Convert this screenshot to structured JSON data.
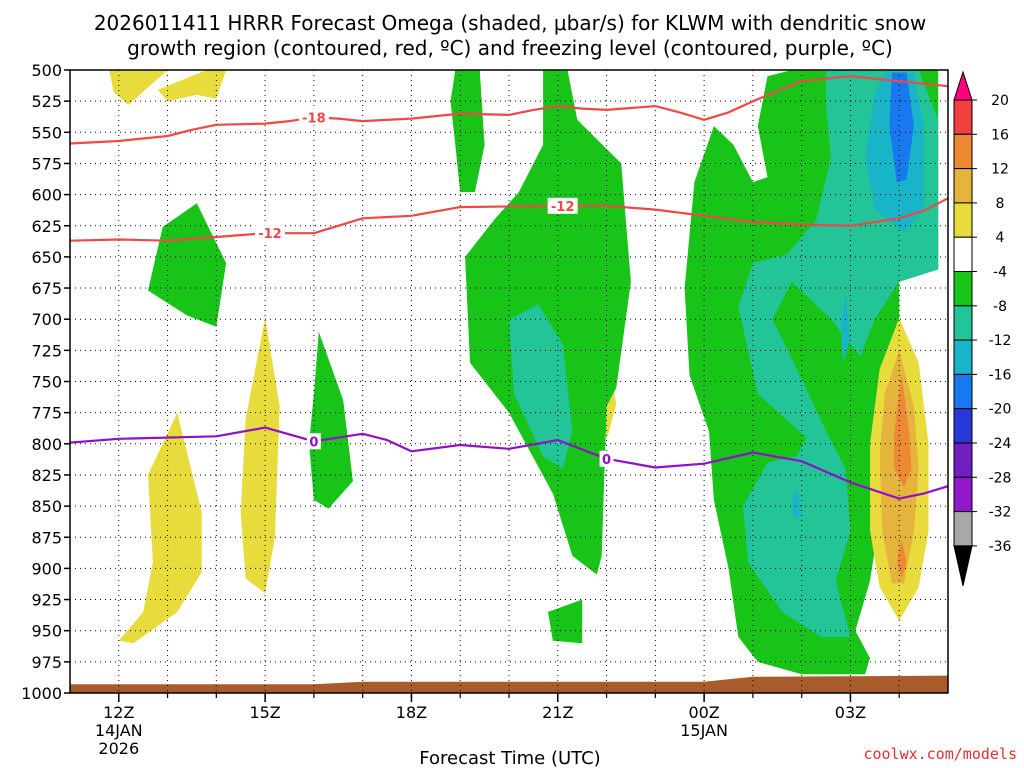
{
  "chart_data": {
    "type": "contour",
    "title_line1": "2026011411 HRRR Forecast Omega (shaded, μbar/s) for KLWM with dendritic snow",
    "title_line2": "growth region (contoured, red, ºC) and freezing level (contoured, purple, ºC)",
    "xlabel": "Forecast Time (UTC)",
    "credit": "coolwx.com/models",
    "x_range_hours": [
      11,
      29
    ],
    "y_range_mb": [
      500,
      1000
    ],
    "y_ticks": [
      500,
      525,
      550,
      575,
      600,
      625,
      650,
      675,
      700,
      725,
      750,
      775,
      800,
      825,
      850,
      875,
      900,
      925,
      950,
      975,
      1000
    ],
    "x_ticks": [
      {
        "hour": 12,
        "label": "12Z",
        "sub1": "14JAN",
        "sub2": "2026"
      },
      {
        "hour": 15,
        "label": "15Z",
        "sub1": "",
        "sub2": ""
      },
      {
        "hour": 18,
        "label": "18Z",
        "sub1": "",
        "sub2": ""
      },
      {
        "hour": 21,
        "label": "21Z",
        "sub1": "",
        "sub2": ""
      },
      {
        "hour": 24,
        "label": "00Z",
        "sub1": "15JAN",
        "sub2": ""
      },
      {
        "hour": 27,
        "label": "03Z",
        "sub1": "",
        "sub2": ""
      }
    ],
    "colorbar": {
      "labels": [
        "20",
        "16",
        "12",
        "8",
        "4",
        "-4",
        "-8",
        "-12",
        "-16",
        "-20",
        "-24",
        "-28",
        "-32",
        "-36"
      ],
      "colors": [
        "#ff0080",
        "#f04040",
        "#ee8833",
        "#e4b43c",
        "#e8dc3c",
        "#ffffff",
        "#17c417",
        "#22c498",
        "#18b4c8",
        "#1878f0",
        "#2838d8",
        "#7020c0",
        "#9018c8",
        "#a8a8a8",
        "#000000"
      ]
    },
    "isotherm_neg18": {
      "label": "-18",
      "color": "#f04848",
      "points": [
        [
          11,
          559
        ],
        [
          12,
          557
        ],
        [
          13,
          553
        ],
        [
          13.5,
          548
        ],
        [
          14,
          544
        ],
        [
          15,
          543
        ],
        [
          15.5,
          541
        ],
        [
          16,
          538
        ],
        [
          16.5,
          539
        ],
        [
          17,
          541
        ],
        [
          18,
          539
        ],
        [
          19,
          535
        ],
        [
          20,
          536
        ],
        [
          20.5,
          532
        ],
        [
          21,
          529
        ],
        [
          21.5,
          531
        ],
        [
          22,
          532
        ],
        [
          23,
          529
        ],
        [
          23.5,
          534
        ],
        [
          24,
          540
        ],
        [
          24.5,
          534
        ],
        [
          25,
          525
        ],
        [
          26,
          509
        ],
        [
          27,
          505
        ],
        [
          28,
          509
        ],
        [
          29,
          513
        ]
      ]
    },
    "isotherm_neg12": {
      "label": "-12",
      "color": "#f04848",
      "points": [
        [
          11,
          637
        ],
        [
          12,
          636
        ],
        [
          13,
          637
        ],
        [
          14,
          634
        ],
        [
          15,
          631
        ],
        [
          16,
          631
        ],
        [
          16.5,
          625
        ],
        [
          17,
          619
        ],
        [
          18,
          617
        ],
        [
          19,
          610
        ],
        [
          21,
          609
        ],
        [
          22,
          609
        ],
        [
          23,
          612
        ],
        [
          24,
          617
        ],
        [
          25,
          622
        ],
        [
          26,
          624
        ],
        [
          27,
          625
        ],
        [
          28,
          619
        ],
        [
          28.5,
          613
        ],
        [
          29,
          603
        ]
      ]
    },
    "isotherm_0": {
      "label": "0",
      "color": "#9010c8",
      "points": [
        [
          11,
          799
        ],
        [
          12,
          796
        ],
        [
          14,
          794
        ],
        [
          15,
          787
        ],
        [
          16,
          798
        ],
        [
          17,
          792
        ],
        [
          17.5,
          797
        ],
        [
          18,
          806
        ],
        [
          19,
          801
        ],
        [
          20,
          804
        ],
        [
          21,
          797
        ],
        [
          22,
          812
        ],
        [
          23,
          819
        ],
        [
          24,
          816
        ],
        [
          25,
          807
        ],
        [
          26,
          814
        ],
        [
          27,
          831
        ],
        [
          28,
          844
        ],
        [
          28.5,
          840
        ],
        [
          29,
          834
        ]
      ]
    },
    "omega_regions": [
      {
        "value": 4,
        "color": "#e8dc3c",
        "points": [
          [
            11.8,
            500
          ],
          [
            13.0,
            500
          ],
          [
            12.2,
            528
          ],
          [
            11.9,
            518
          ]
        ]
      },
      {
        "value": 4,
        "color": "#e8dc3c",
        "points": [
          [
            13.8,
            500
          ],
          [
            14.2,
            500
          ],
          [
            14.0,
            523
          ],
          [
            13.6,
            520
          ],
          [
            13.0,
            525
          ],
          [
            12.8,
            516
          ]
        ]
      },
      {
        "value": -8,
        "color": "#17c417",
        "points": [
          [
            13.6,
            607
          ],
          [
            14.2,
            655
          ],
          [
            14.0,
            706
          ],
          [
            13.4,
            697
          ],
          [
            12.6,
            677
          ],
          [
            12.9,
            626
          ]
        ]
      },
      {
        "value": 4,
        "color": "#e8dc3c",
        "points": [
          [
            13.2,
            775
          ],
          [
            13.7,
            855
          ],
          [
            13.7,
            903
          ],
          [
            13.2,
            935
          ],
          [
            12.3,
            960
          ],
          [
            12.0,
            958
          ],
          [
            12.5,
            935
          ],
          [
            12.7,
            895
          ],
          [
            12.6,
            825
          ]
        ]
      },
      {
        "value": 4,
        "color": "#e8dc3c",
        "points": [
          [
            15.0,
            699
          ],
          [
            15.3,
            770
          ],
          [
            15.2,
            875
          ],
          [
            15.0,
            920
          ],
          [
            14.6,
            908
          ],
          [
            14.5,
            855
          ],
          [
            14.6,
            780
          ]
        ]
      },
      {
        "value": -8,
        "color": "#17c417",
        "points": [
          [
            16.1,
            710
          ],
          [
            16.6,
            765
          ],
          [
            16.8,
            830
          ],
          [
            16.3,
            852
          ],
          [
            16.0,
            845
          ],
          [
            15.9,
            800
          ],
          [
            16.0,
            760
          ]
        ]
      },
      {
        "value": 4,
        "color": "#e8dc3c",
        "points": [
          [
            22.0,
            727
          ],
          [
            22.2,
            768
          ],
          [
            22.0,
            797
          ],
          [
            21.9,
            760
          ]
        ]
      },
      {
        "value": -8,
        "color": "#17c417",
        "points": [
          [
            19.4,
            500
          ],
          [
            19.5,
            560
          ],
          [
            19.3,
            598
          ],
          [
            19.0,
            598
          ],
          [
            18.9,
            560
          ],
          [
            18.8,
            525
          ],
          [
            18.9,
            500
          ]
        ]
      },
      {
        "value": -8,
        "color": "#17c417",
        "points": [
          [
            21.2,
            500
          ],
          [
            21.4,
            540
          ],
          [
            22.3,
            575
          ],
          [
            22.5,
            670
          ],
          [
            22.2,
            755
          ],
          [
            22.0,
            770
          ],
          [
            21.9,
            890
          ],
          [
            21.8,
            905
          ],
          [
            21.3,
            890
          ],
          [
            20.9,
            840
          ],
          [
            20.0,
            775
          ],
          [
            19.2,
            735
          ],
          [
            19.1,
            650
          ],
          [
            19.7,
            620
          ],
          [
            20.2,
            598
          ],
          [
            20.7,
            560
          ],
          [
            20.7,
            500
          ]
        ]
      },
      {
        "value": -8,
        "color": "#17c417",
        "points": [
          [
            21.5,
            925
          ],
          [
            21.5,
            960
          ],
          [
            20.9,
            958
          ],
          [
            20.8,
            935
          ]
        ]
      },
      {
        "value": -12,
        "color": "#22c498",
        "points": [
          [
            20.6,
            688
          ],
          [
            21.1,
            720
          ],
          [
            21.3,
            790
          ],
          [
            21.1,
            820
          ],
          [
            20.7,
            810
          ],
          [
            20.1,
            760
          ],
          [
            20.0,
            700
          ]
        ]
      },
      {
        "value": -8,
        "color": "#17c417",
        "points": [
          [
            25.8,
            500
          ],
          [
            26.5,
            500
          ],
          [
            27.5,
            500
          ],
          [
            28.8,
            500
          ],
          [
            28.8,
            660
          ],
          [
            28.0,
            670
          ],
          [
            28.0,
            740
          ],
          [
            27.5,
            800
          ],
          [
            27.6,
            860
          ],
          [
            27.4,
            910
          ],
          [
            27.1,
            950
          ],
          [
            27.4,
            972
          ],
          [
            27.3,
            985
          ],
          [
            26.0,
            985
          ],
          [
            25.1,
            975
          ],
          [
            24.7,
            955
          ],
          [
            24.5,
            900
          ],
          [
            24.2,
            845
          ],
          [
            24.1,
            790
          ],
          [
            23.7,
            745
          ],
          [
            23.6,
            675
          ],
          [
            23.8,
            590
          ],
          [
            24.2,
            545
          ],
          [
            24.6,
            560
          ],
          [
            25.0,
            590
          ],
          [
            25.3,
            586
          ],
          [
            25.1,
            545
          ],
          [
            25.3,
            505
          ]
        ]
      },
      {
        "value": -12,
        "color": "#22c498",
        "points": [
          [
            26.5,
            500
          ],
          [
            28.4,
            500
          ],
          [
            28.8,
            540
          ],
          [
            28.8,
            660
          ],
          [
            28.0,
            670
          ],
          [
            27.5,
            700
          ],
          [
            27.2,
            730
          ],
          [
            26.6,
            700
          ],
          [
            25.8,
            670
          ],
          [
            25.4,
            700
          ],
          [
            25.9,
            740
          ],
          [
            26.5,
            790
          ],
          [
            26.9,
            820
          ],
          [
            27.0,
            870
          ],
          [
            26.7,
            910
          ],
          [
            27.0,
            955
          ],
          [
            26.4,
            955
          ],
          [
            25.6,
            935
          ],
          [
            24.9,
            895
          ],
          [
            24.8,
            850
          ],
          [
            25.3,
            815
          ],
          [
            25.9,
            810
          ],
          [
            26.1,
            795
          ],
          [
            25.1,
            760
          ],
          [
            24.7,
            690
          ],
          [
            25.0,
            655
          ],
          [
            25.7,
            648
          ],
          [
            26.3,
            620
          ],
          [
            26.6,
            570
          ],
          [
            26.5,
            530
          ]
        ]
      },
      {
        "value": -16,
        "color": "#18b4c8",
        "points": [
          [
            27.7,
            502
          ],
          [
            28.3,
            502
          ],
          [
            28.5,
            545
          ],
          [
            28.5,
            612
          ],
          [
            28.1,
            630
          ],
          [
            27.5,
            612
          ],
          [
            27.3,
            568
          ],
          [
            27.5,
            520
          ]
        ]
      },
      {
        "value": -16,
        "color": "#18b4c8",
        "points": [
          [
            26.9,
            680
          ],
          [
            27.0,
            715
          ],
          [
            26.85,
            735
          ],
          [
            26.8,
            705
          ]
        ]
      },
      {
        "value": -16,
        "color": "#18b4c8",
        "points": [
          [
            25.9,
            836
          ],
          [
            26.0,
            856
          ],
          [
            25.85,
            860
          ],
          [
            25.8,
            845
          ]
        ]
      },
      {
        "value": -20,
        "color": "#1878f0",
        "points": [
          [
            27.85,
            502
          ],
          [
            28.15,
            502
          ],
          [
            28.3,
            545
          ],
          [
            28.15,
            588
          ],
          [
            27.95,
            590
          ],
          [
            27.8,
            545
          ]
        ]
      },
      {
        "value": 4,
        "color": "#e8dc3c",
        "points": [
          [
            28.0,
            699
          ],
          [
            28.4,
            735
          ],
          [
            28.6,
            800
          ],
          [
            28.6,
            870
          ],
          [
            28.4,
            915
          ],
          [
            28.0,
            942
          ],
          [
            27.6,
            915
          ],
          [
            27.4,
            870
          ],
          [
            27.4,
            800
          ],
          [
            27.6,
            740
          ]
        ]
      },
      {
        "value": 8,
        "color": "#e4b43c",
        "points": [
          [
            28.0,
            725
          ],
          [
            28.3,
            770
          ],
          [
            28.4,
            820
          ],
          [
            28.3,
            870
          ],
          [
            28.1,
            912
          ],
          [
            27.85,
            912
          ],
          [
            27.65,
            870
          ],
          [
            27.6,
            810
          ],
          [
            27.7,
            760
          ]
        ]
      },
      {
        "value": 12,
        "color": "#ee8833",
        "points": [
          [
            28.05,
            745
          ],
          [
            28.2,
            790
          ],
          [
            28.25,
            820
          ],
          [
            28.1,
            835
          ],
          [
            27.9,
            820
          ],
          [
            27.9,
            790
          ]
        ]
      },
      {
        "value": 12,
        "color": "#ee8833",
        "points": [
          [
            28.05,
            877
          ],
          [
            28.15,
            895
          ],
          [
            28.05,
            908
          ],
          [
            27.95,
            895
          ]
        ]
      }
    ],
    "ground_level_mb": [
      [
        11,
        993
      ],
      [
        16,
        993
      ],
      [
        17,
        991
      ],
      [
        24,
        991
      ],
      [
        25,
        987
      ],
      [
        29,
        986
      ]
    ]
  }
}
